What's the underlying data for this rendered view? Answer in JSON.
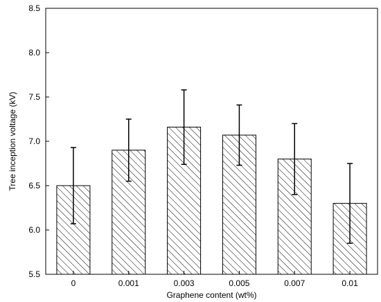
{
  "chart_data": {
    "type": "bar",
    "title": "",
    "xlabel": "Graphene content  (wt%)",
    "ylabel": "Tree inception voltage (kV)",
    "categories": [
      "0",
      "0.001",
      "0.003",
      "0.005",
      "0.007",
      "0.01"
    ],
    "values": [
      6.5,
      6.9,
      7.16,
      7.07,
      6.8,
      6.3
    ],
    "error_low": [
      6.07,
      6.55,
      6.74,
      6.73,
      6.4,
      5.85
    ],
    "error_high": [
      6.93,
      7.25,
      7.58,
      7.41,
      7.2,
      6.75
    ],
    "ylim": [
      5.5,
      8.5
    ],
    "yticks": [
      "5.5",
      "6.0",
      "6.5",
      "7.0",
      "7.5",
      "8.0",
      "8.5"
    ],
    "bar_fill": "diagonal-hatch",
    "grid": false,
    "legend": "none",
    "colors": {
      "bar_stroke": "#000000",
      "hatch": "#000000",
      "background": "#ffffff"
    }
  }
}
